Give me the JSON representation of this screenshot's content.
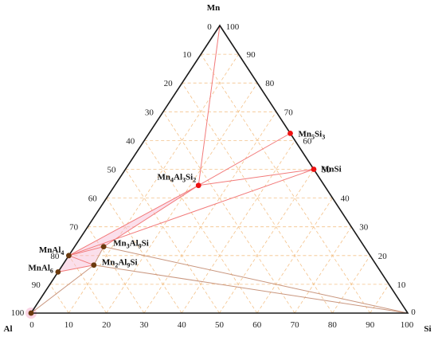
{
  "vertices": {
    "top": "Mn",
    "left": "Al",
    "right": "Si"
  },
  "corner_ticks": {
    "top_left": "0",
    "top_right": "100",
    "left_left": "100",
    "left_bottom": "0",
    "right_bottom": "100",
    "right_right": "0"
  },
  "colors": {
    "grid": "#f4c28a",
    "frame": "#1a1a1a",
    "tie_red": "#f27a7a",
    "tie_brown": "#c9967e",
    "phase_red": "#ee1111",
    "phase_brown": "#6b3a0e",
    "highlight": "#f6b7d2"
  },
  "chart_data": {
    "type": "ternary",
    "components": [
      "Al",
      "Si",
      "Mn"
    ],
    "ticks": [
      0,
      10,
      20,
      30,
      40,
      50,
      60,
      70,
      80,
      90,
      100
    ],
    "tick_labels": {
      "left_edge": [
        "90",
        "80",
        "70",
        "60",
        "50",
        "40",
        "30",
        "20",
        "10"
      ],
      "bottom_edge": [
        "10",
        "20",
        "30",
        "40",
        "50",
        "60",
        "70",
        "80",
        "90"
      ],
      "right_edge": [
        "10",
        "20",
        "30",
        "40",
        "50",
        "60",
        "70",
        "80",
        "90"
      ]
    },
    "grid": true,
    "phases": [
      {
        "label": "Mn5Si3",
        "display": [
          "Mn",
          "5",
          "Si",
          "3"
        ],
        "color": "red",
        "si": 37.5,
        "mn": 62.5
      },
      {
        "label": "MnSi",
        "display": [
          "MnSi"
        ],
        "color": "red",
        "si": 50,
        "mn": 50
      },
      {
        "label": "Mn4Al3Si2",
        "display": [
          "Mn",
          "4",
          "Al",
          "3",
          "Si",
          "2"
        ],
        "color": "red",
        "si": 22.2,
        "mn": 44.4
      },
      {
        "label": "MnAl4",
        "display": [
          "MnAl",
          "4"
        ],
        "color": "brown",
        "si": 0,
        "mn": 20
      },
      {
        "label": "MnAl6",
        "display": [
          "MnAl",
          "6"
        ],
        "color": "brown",
        "si": 0,
        "mn": 14.3
      },
      {
        "label": "Mn3Al9Si",
        "display": [
          "Mn",
          "3",
          "Al",
          "9",
          "Si"
        ],
        "color": "brown",
        "si": 7.7,
        "mn": 23.1
      },
      {
        "label": "Mn2Al9Si",
        "display": [
          "Mn",
          "2",
          "Al",
          "9",
          "Si"
        ],
        "color": "brown",
        "si": 8.3,
        "mn": 16.7
      },
      {
        "label": "Al",
        "display": [],
        "color": "brown",
        "si": 0,
        "mn": 0
      },
      {
        "label": "Mn",
        "display": [],
        "color": "none",
        "si": 0,
        "mn": 100
      },
      {
        "label": "Si",
        "display": [],
        "color": "none",
        "si": 100,
        "mn": 0
      }
    ],
    "tie_lines": [
      [
        "Mn",
        "Mn5Si3",
        "red"
      ],
      [
        "Mn",
        "Mn4Al3Si2",
        "red"
      ],
      [
        "Mn5Si3",
        "Mn4Al3Si2",
        "red"
      ],
      [
        "MnSi",
        "Mn4Al3Si2",
        "red"
      ],
      [
        "MnSi",
        "MnAl4",
        "red"
      ],
      [
        "Mn4Al3Si2",
        "MnAl4",
        "red"
      ],
      [
        "Mn4Al3Si2",
        "Mn3Al9Si",
        "red"
      ],
      [
        "MnAl4",
        "Mn3Al9Si",
        "red"
      ],
      [
        "MnAl4",
        "Mn2Al9Si",
        "red"
      ],
      [
        "MnAl6",
        "Mn2Al9Si",
        "red"
      ],
      [
        "Mn3Al9Si",
        "Mn2Al9Si",
        "brown"
      ],
      [
        "MnAl6",
        "MnAl4",
        "brown"
      ],
      [
        "Al",
        "Mn2Al9Si",
        "brown"
      ],
      [
        "Mn3Al9Si",
        "Si",
        "brown"
      ],
      [
        "Mn2Al9Si",
        "Si",
        "brown"
      ],
      [
        "Al",
        "Si",
        "brown"
      ]
    ]
  }
}
